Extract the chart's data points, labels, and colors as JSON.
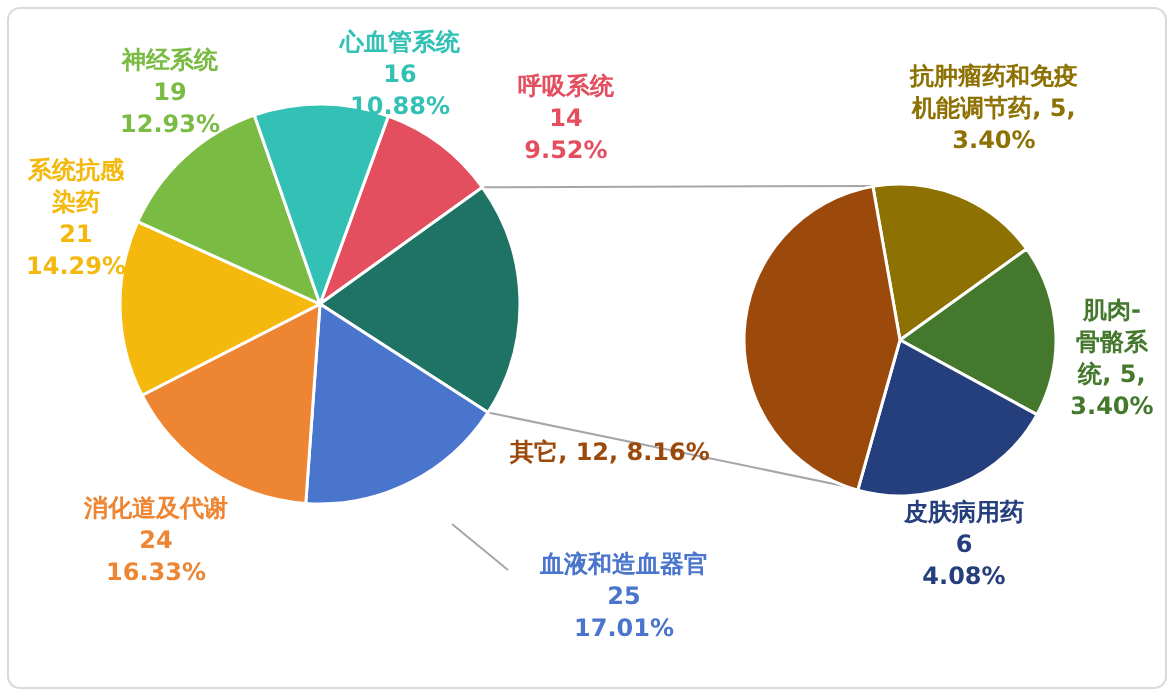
{
  "chart_data": [
    {
      "type": "pie",
      "categories": [
        "呼吸系统",
        null,
        "血液和造血器官",
        "消化道及代谢",
        "系统抗感染药",
        "神经系统",
        "心血管系统"
      ],
      "values": [
        14,
        28,
        25,
        24,
        21,
        19,
        16
      ],
      "colors": [
        "#e34f5f",
        "#1e7365",
        "#4a75cc",
        "#ee8533",
        "#f4b90c",
        "#79bb43",
        "#33c1b5"
      ],
      "value_labels": [
        "14\n9.52%",
        null,
        "25\n17.01%",
        "24\n16.33%",
        "21\n14.29%",
        "19\n12.93%",
        "16\n10.88%"
      ]
    },
    {
      "type": "pie",
      "categories": [
        "抗肿瘤药和免疫机能调节药",
        "肌肉-骨骼系统",
        "皮肤病用药",
        "其它"
      ],
      "values": [
        5,
        5,
        6,
        12
      ],
      "colors": [
        "#8d7102",
        "#44782c",
        "#243f7c",
        "#9c4a0c"
      ],
      "value_labels": [
        "5, 3.40%",
        "5, 3.40%",
        "6\n4.08%",
        "12, 8.16%"
      ]
    }
  ]
}
